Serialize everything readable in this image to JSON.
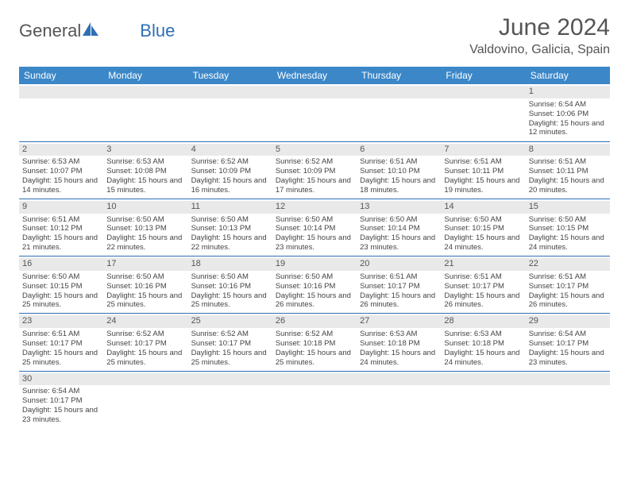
{
  "brand": {
    "part1": "General",
    "part2": "Blue"
  },
  "title": "June 2024",
  "location": "Valdovino, Galicia, Spain",
  "colors": {
    "header_bg": "#3b87c8",
    "header_text": "#ffffff",
    "rule": "#2d6fb5",
    "daynum_bg": "#e9e9e9",
    "text": "#444444",
    "title_text": "#555555"
  },
  "day_headers": [
    "Sunday",
    "Monday",
    "Tuesday",
    "Wednesday",
    "Thursday",
    "Friday",
    "Saturday"
  ],
  "weeks": [
    [
      null,
      null,
      null,
      null,
      null,
      null,
      {
        "n": "1",
        "sr": "6:54 AM",
        "ss": "10:06 PM",
        "dl": "15 hours and 12 minutes."
      }
    ],
    [
      {
        "n": "2",
        "sr": "6:53 AM",
        "ss": "10:07 PM",
        "dl": "15 hours and 14 minutes."
      },
      {
        "n": "3",
        "sr": "6:53 AM",
        "ss": "10:08 PM",
        "dl": "15 hours and 15 minutes."
      },
      {
        "n": "4",
        "sr": "6:52 AM",
        "ss": "10:09 PM",
        "dl": "15 hours and 16 minutes."
      },
      {
        "n": "5",
        "sr": "6:52 AM",
        "ss": "10:09 PM",
        "dl": "15 hours and 17 minutes."
      },
      {
        "n": "6",
        "sr": "6:51 AM",
        "ss": "10:10 PM",
        "dl": "15 hours and 18 minutes."
      },
      {
        "n": "7",
        "sr": "6:51 AM",
        "ss": "10:11 PM",
        "dl": "15 hours and 19 minutes."
      },
      {
        "n": "8",
        "sr": "6:51 AM",
        "ss": "10:11 PM",
        "dl": "15 hours and 20 minutes."
      }
    ],
    [
      {
        "n": "9",
        "sr": "6:51 AM",
        "ss": "10:12 PM",
        "dl": "15 hours and 21 minutes."
      },
      {
        "n": "10",
        "sr": "6:50 AM",
        "ss": "10:13 PM",
        "dl": "15 hours and 22 minutes."
      },
      {
        "n": "11",
        "sr": "6:50 AM",
        "ss": "10:13 PM",
        "dl": "15 hours and 22 minutes."
      },
      {
        "n": "12",
        "sr": "6:50 AM",
        "ss": "10:14 PM",
        "dl": "15 hours and 23 minutes."
      },
      {
        "n": "13",
        "sr": "6:50 AM",
        "ss": "10:14 PM",
        "dl": "15 hours and 23 minutes."
      },
      {
        "n": "14",
        "sr": "6:50 AM",
        "ss": "10:15 PM",
        "dl": "15 hours and 24 minutes."
      },
      {
        "n": "15",
        "sr": "6:50 AM",
        "ss": "10:15 PM",
        "dl": "15 hours and 24 minutes."
      }
    ],
    [
      {
        "n": "16",
        "sr": "6:50 AM",
        "ss": "10:15 PM",
        "dl": "15 hours and 25 minutes."
      },
      {
        "n": "17",
        "sr": "6:50 AM",
        "ss": "10:16 PM",
        "dl": "15 hours and 25 minutes."
      },
      {
        "n": "18",
        "sr": "6:50 AM",
        "ss": "10:16 PM",
        "dl": "15 hours and 25 minutes."
      },
      {
        "n": "19",
        "sr": "6:50 AM",
        "ss": "10:16 PM",
        "dl": "15 hours and 26 minutes."
      },
      {
        "n": "20",
        "sr": "6:51 AM",
        "ss": "10:17 PM",
        "dl": "15 hours and 26 minutes."
      },
      {
        "n": "21",
        "sr": "6:51 AM",
        "ss": "10:17 PM",
        "dl": "15 hours and 26 minutes."
      },
      {
        "n": "22",
        "sr": "6:51 AM",
        "ss": "10:17 PM",
        "dl": "15 hours and 26 minutes."
      }
    ],
    [
      {
        "n": "23",
        "sr": "6:51 AM",
        "ss": "10:17 PM",
        "dl": "15 hours and 25 minutes."
      },
      {
        "n": "24",
        "sr": "6:52 AM",
        "ss": "10:17 PM",
        "dl": "15 hours and 25 minutes."
      },
      {
        "n": "25",
        "sr": "6:52 AM",
        "ss": "10:17 PM",
        "dl": "15 hours and 25 minutes."
      },
      {
        "n": "26",
        "sr": "6:52 AM",
        "ss": "10:18 PM",
        "dl": "15 hours and 25 minutes."
      },
      {
        "n": "27",
        "sr": "6:53 AM",
        "ss": "10:18 PM",
        "dl": "15 hours and 24 minutes."
      },
      {
        "n": "28",
        "sr": "6:53 AM",
        "ss": "10:18 PM",
        "dl": "15 hours and 24 minutes."
      },
      {
        "n": "29",
        "sr": "6:54 AM",
        "ss": "10:17 PM",
        "dl": "15 hours and 23 minutes."
      }
    ],
    [
      {
        "n": "30",
        "sr": "6:54 AM",
        "ss": "10:17 PM",
        "dl": "15 hours and 23 minutes."
      },
      null,
      null,
      null,
      null,
      null,
      null
    ]
  ],
  "labels": {
    "sunrise": "Sunrise: ",
    "sunset": "Sunset: ",
    "daylight": "Daylight: "
  }
}
